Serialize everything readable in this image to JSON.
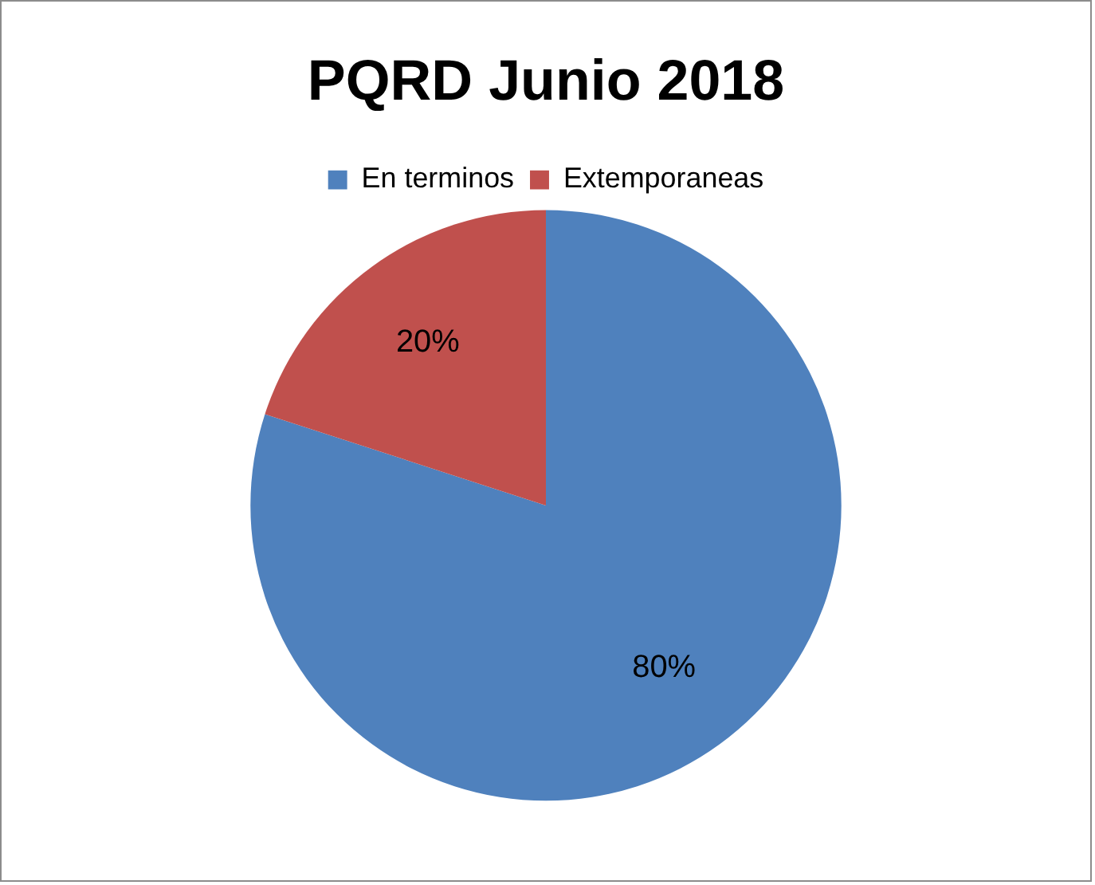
{
  "chart_data": {
    "type": "pie",
    "title": "PQRD Junio 2018",
    "categories": [
      "En terminos",
      "Extemporaneas"
    ],
    "values": [
      80,
      20
    ],
    "colors": [
      "#4f81bd",
      "#c0504d"
    ],
    "value_labels": [
      "80%",
      "20%"
    ],
    "legend": "top"
  }
}
